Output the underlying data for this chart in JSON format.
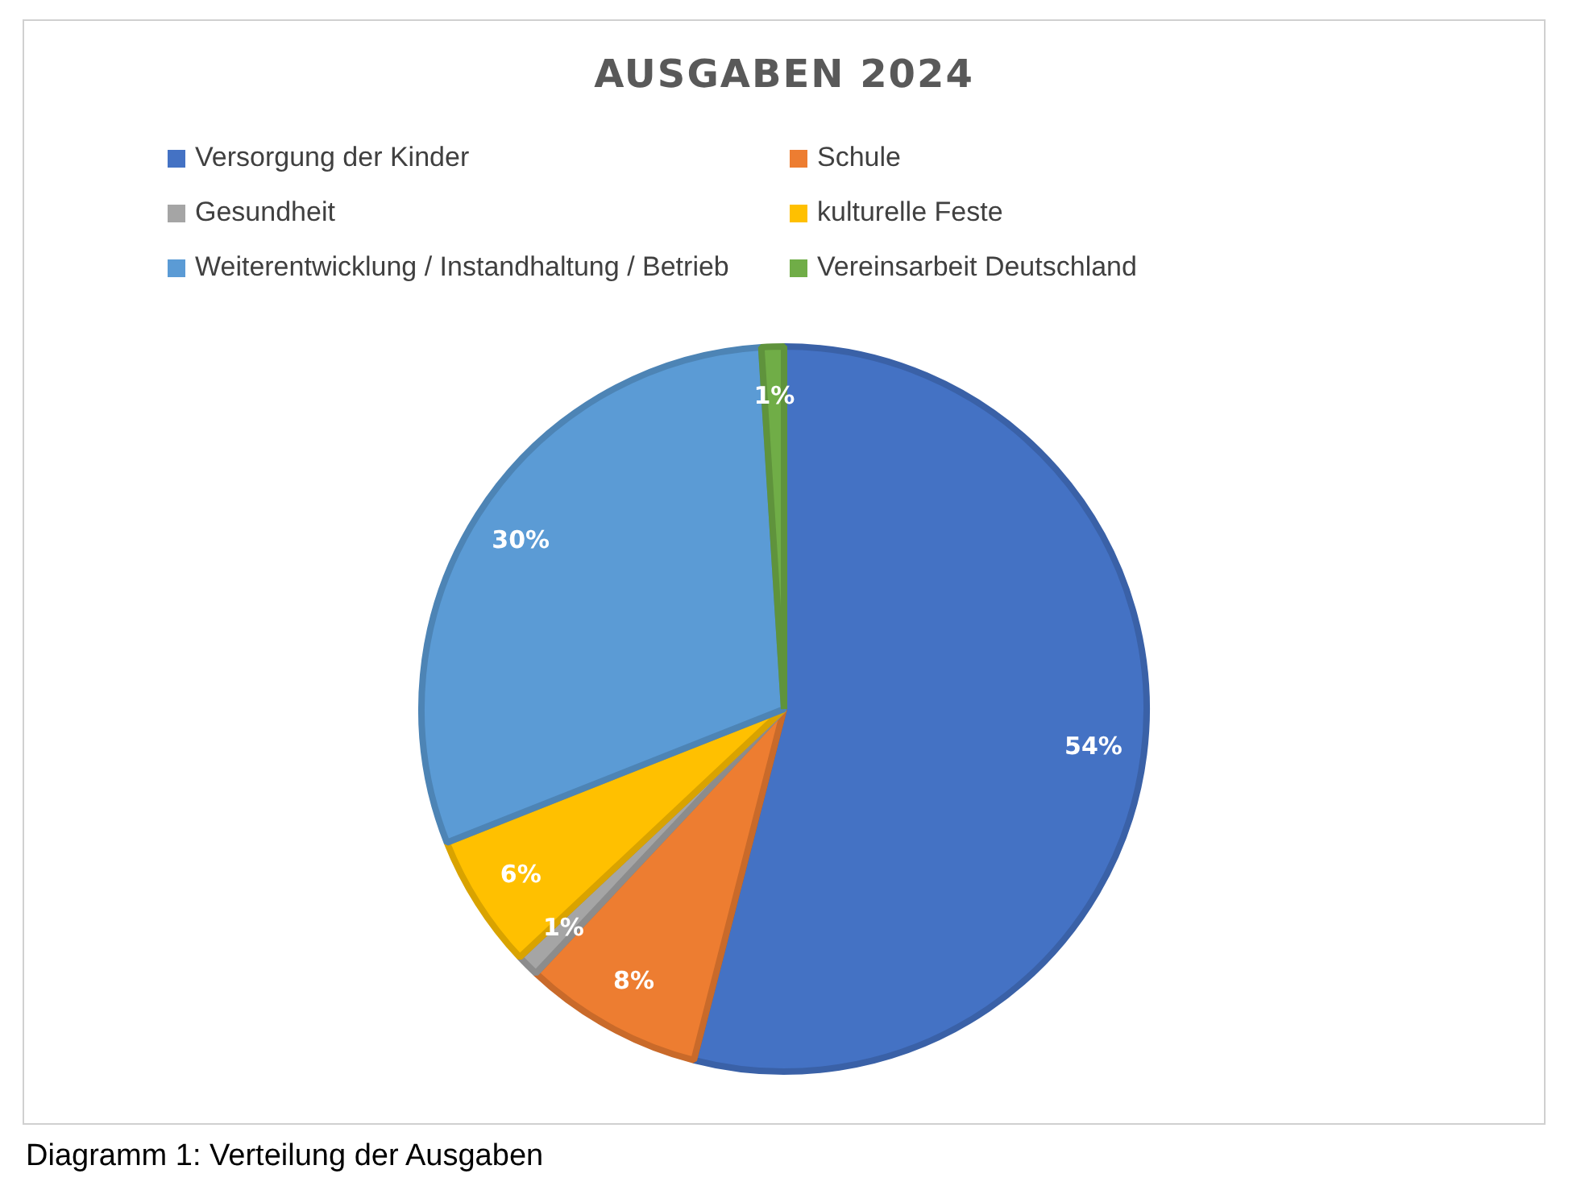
{
  "chart_data": {
    "type": "pie",
    "title": "AUSGABEN 2024",
    "categories": [
      "Versorgung der Kinder",
      "Schule",
      "Gesundheit",
      "kulturelle Feste",
      "Weiterentwicklung / Instandhaltung / Betrieb",
      "Vereinsarbeit Deutschland"
    ],
    "values": [
      54,
      8,
      1,
      6,
      30,
      1
    ],
    "colors": [
      "#4472c4",
      "#ed7d31",
      "#a5a5a5",
      "#ffc000",
      "#5b9bd5",
      "#70ad47"
    ],
    "value_labels": [
      "54%",
      "8%",
      "1%",
      "6%",
      "30%",
      "1%"
    ],
    "legend": "top",
    "annotations": [
      "Diagramm 1: Verteilung der Ausgaben"
    ]
  }
}
